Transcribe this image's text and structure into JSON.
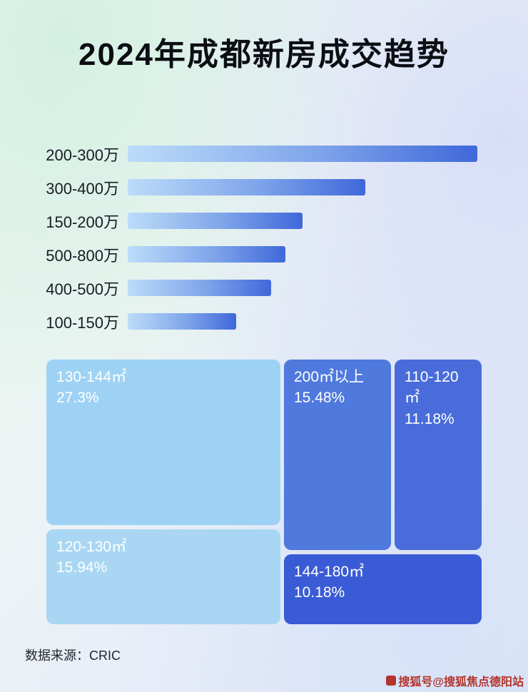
{
  "page": {
    "title": "2024年成都新房成交趋势",
    "source": "数据来源：CRIC",
    "watermark": "搜狐号@搜狐焦点德阳站"
  },
  "chart_data": [
    {
      "type": "bar",
      "title": "2024年成都新房成交趋势",
      "orientation": "horizontal",
      "categories": [
        "200-300万",
        "300-400万",
        "150-200万",
        "500-800万",
        "400-500万",
        "100-150万"
      ],
      "values": [
        100,
        68,
        50,
        45,
        41,
        31
      ],
      "value_note": "无数值标注，values 为相对条长（最长条=100）",
      "xlabel": "",
      "ylabel": "",
      "grid": false,
      "legend": false,
      "bar_gradient": [
        "#bcdcf9",
        "#3f68da"
      ]
    },
    {
      "type": "treemap",
      "items": [
        {
          "label": "130-144㎡",
          "value": "27.3%",
          "color": "#9ed2f5"
        },
        {
          "label": "200㎡以上",
          "value": "15.48%",
          "color": "#5079de"
        },
        {
          "label": "110-120㎡",
          "value": "11.18%",
          "color": "#4a6cda"
        },
        {
          "label": "120-130㎡",
          "value": "15.94%",
          "color": "#a9d7f3"
        },
        {
          "label": "144-180㎡",
          "value": "10.18%",
          "color": "#3a5bd6"
        }
      ]
    }
  ]
}
